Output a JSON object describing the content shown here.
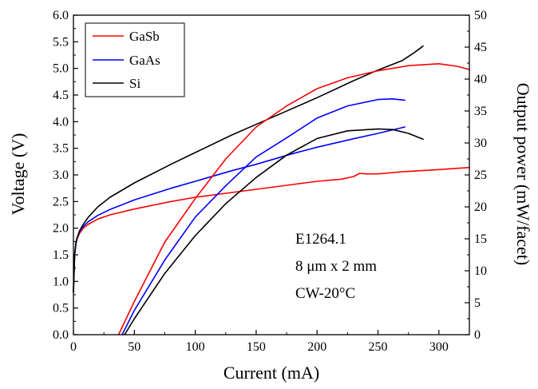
{
  "chart_data": {
    "type": "line",
    "title": "",
    "xlabel": "Current (mA)",
    "ylabel_left": "Voltage (V)",
    "ylabel_right": "Output power (mW/facet)",
    "xlim": [
      0,
      325
    ],
    "ylim_left": [
      0.0,
      6.0
    ],
    "ylim_right": [
      0,
      50
    ],
    "x_ticks": [
      0,
      50,
      100,
      150,
      200,
      250,
      300
    ],
    "y_left_ticks": [
      "0.0",
      "0.5",
      "1.0",
      "1.5",
      "2.0",
      "2.5",
      "3.0",
      "3.5",
      "4.0",
      "4.5",
      "5.0",
      "5.5",
      "6.0"
    ],
    "y_right_ticks": [
      0,
      5,
      10,
      15,
      20,
      25,
      30,
      35,
      40,
      45,
      50
    ],
    "grid": false,
    "legend_position": "top-left",
    "legend": [
      "GaSb",
      "GaAs",
      "Si"
    ],
    "annotations": [
      "E1264.1",
      "8 μm x 2 mm",
      "CW-20°C"
    ],
    "series": [
      {
        "name": "GaSb",
        "color": "#ff0000",
        "axis": "left",
        "x": [
          0,
          1,
          2,
          3,
          5,
          8,
          12,
          20,
          30,
          50,
          80,
          100,
          130,
          150,
          180,
          200,
          220,
          230,
          235,
          240,
          245,
          250,
          270,
          300,
          325
        ],
        "y": [
          0.8,
          1.5,
          1.7,
          1.8,
          1.9,
          2.0,
          2.07,
          2.17,
          2.25,
          2.36,
          2.5,
          2.58,
          2.67,
          2.73,
          2.82,
          2.88,
          2.92,
          2.97,
          3.03,
          3.02,
          3.02,
          3.02,
          3.06,
          3.1,
          3.14
        ]
      },
      {
        "name": "GaAs",
        "color": "#0000ff",
        "axis": "left",
        "x": [
          0,
          1,
          2,
          3,
          5,
          8,
          12,
          20,
          30,
          50,
          80,
          100,
          130,
          150,
          180,
          200,
          230,
          250,
          272
        ],
        "y": [
          0.8,
          1.5,
          1.72,
          1.82,
          1.93,
          2.03,
          2.12,
          2.24,
          2.35,
          2.53,
          2.75,
          2.88,
          3.08,
          3.2,
          3.4,
          3.52,
          3.68,
          3.78,
          3.9
        ]
      },
      {
        "name": "Si",
        "color": "#000000",
        "axis": "left",
        "x": [
          0,
          1,
          2,
          3,
          5,
          8,
          12,
          20,
          30,
          50,
          80,
          100,
          130,
          150,
          180,
          200,
          230,
          250,
          270,
          280,
          287
        ],
        "y": [
          0.8,
          1.5,
          1.72,
          1.82,
          1.95,
          2.07,
          2.2,
          2.4,
          2.58,
          2.85,
          3.2,
          3.42,
          3.75,
          3.95,
          4.25,
          4.45,
          4.77,
          4.97,
          5.15,
          5.3,
          5.42
        ]
      },
      {
        "name": "GaSb",
        "color": "#ff0000",
        "axis": "right",
        "x": [
          37,
          50,
          75,
          100,
          125,
          150,
          175,
          200,
          225,
          250,
          275,
          300,
          315,
          325
        ],
        "y": [
          0,
          5.2,
          14.5,
          21.3,
          27.5,
          32.5,
          35.8,
          38.5,
          40.2,
          41.3,
          42.1,
          42.4,
          42.0,
          41.5
        ]
      },
      {
        "name": "GaAs",
        "color": "#0000ff",
        "axis": "right",
        "x": [
          40,
          50,
          75,
          100,
          125,
          150,
          175,
          200,
          225,
          250,
          262,
          272
        ],
        "y": [
          0,
          3.8,
          11.7,
          18.4,
          23.3,
          27.8,
          30.8,
          33.9,
          35.8,
          36.8,
          36.9,
          36.7
        ]
      },
      {
        "name": "Si",
        "color": "#000000",
        "axis": "right",
        "x": [
          42,
          50,
          75,
          100,
          125,
          150,
          175,
          200,
          225,
          250,
          262,
          275,
          287
        ],
        "y": [
          0,
          2.5,
          9.6,
          15.5,
          20.5,
          24.6,
          28.1,
          30.7,
          31.9,
          32.2,
          32.1,
          31.5,
          30.6
        ]
      }
    ]
  }
}
